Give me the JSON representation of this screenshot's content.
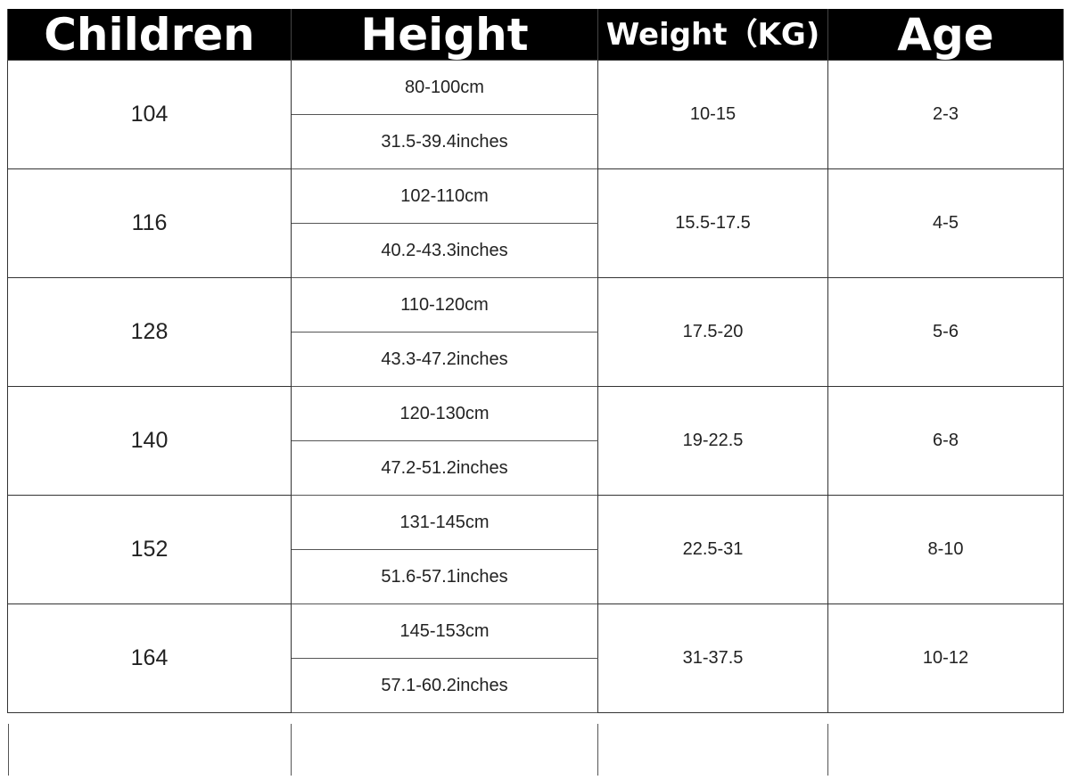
{
  "headers": [
    "Children",
    "Height",
    "Weight（KG)",
    "Age"
  ],
  "rows": [
    {
      "size": "104",
      "cm": "80-100cm",
      "inches": "31.5-39.4inches",
      "weight": "10-15",
      "age": "2-3"
    },
    {
      "size": "116",
      "cm": "102-110cm",
      "inches": "40.2-43.3inches",
      "weight": "15.5-17.5",
      "age": "4-5"
    },
    {
      "size": "128",
      "cm": "110-120cm",
      "inches": "43.3-47.2inches",
      "weight": "17.5-20",
      "age": "5-6"
    },
    {
      "size": "140",
      "cm": "120-130cm",
      "inches": "47.2-51.2inches",
      "weight": "19-22.5",
      "age": "6-8"
    },
    {
      "size": "152",
      "cm": "131-145cm",
      "inches": "51.6-57.1inches",
      "weight": "22.5-31",
      "age": "8-10"
    },
    {
      "size": "164",
      "cm": "145-153cm",
      "inches": "57.1-60.2inches",
      "weight": "31-37.5",
      "age": "10-12"
    }
  ]
}
